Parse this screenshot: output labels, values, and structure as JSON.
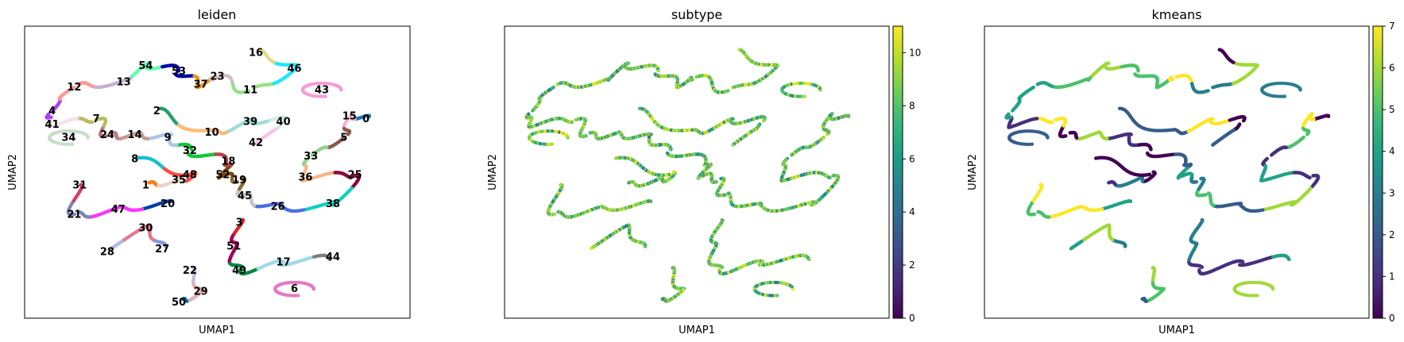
{
  "chart_data": [
    {
      "type": "scatter",
      "title": "leiden",
      "xlabel": "UMAP1",
      "ylabel": "UMAP2",
      "color_by": "categorical",
      "legend": "on data",
      "grid": false,
      "cluster_labels": [
        {
          "label": "0",
          "x": 6.2,
          "y": 7.5
        },
        {
          "label": "1",
          "x": 2.2,
          "y": 5.0
        },
        {
          "label": "2",
          "x": 2.4,
          "y": 7.8
        },
        {
          "label": "3",
          "x": 3.9,
          "y": 3.6
        },
        {
          "label": "4",
          "x": 0.5,
          "y": 7.8
        },
        {
          "label": "5",
          "x": 5.8,
          "y": 6.8
        },
        {
          "label": "6",
          "x": 4.9,
          "y": 1.1
        },
        {
          "label": "7",
          "x": 1.3,
          "y": 7.5
        },
        {
          "label": "8",
          "x": 2.0,
          "y": 6.0
        },
        {
          "label": "9",
          "x": 2.6,
          "y": 6.8
        },
        {
          "label": "10",
          "x": 3.4,
          "y": 7.0
        },
        {
          "label": "11",
          "x": 4.1,
          "y": 8.6
        },
        {
          "label": "12",
          "x": 0.9,
          "y": 8.7
        },
        {
          "label": "13",
          "x": 1.8,
          "y": 8.9
        },
        {
          "label": "14",
          "x": 2.0,
          "y": 6.9
        },
        {
          "label": "15",
          "x": 5.9,
          "y": 7.6
        },
        {
          "label": "16",
          "x": 4.2,
          "y": 10.0
        },
        {
          "label": "17",
          "x": 4.7,
          "y": 2.1
        },
        {
          "label": "18",
          "x": 3.7,
          "y": 5.9
        },
        {
          "label": "19",
          "x": 3.9,
          "y": 5.2
        },
        {
          "label": "20",
          "x": 2.6,
          "y": 4.3
        },
        {
          "label": "21",
          "x": 0.9,
          "y": 3.9
        },
        {
          "label": "22",
          "x": 3.0,
          "y": 1.8
        },
        {
          "label": "23",
          "x": 3.5,
          "y": 9.1
        },
        {
          "label": "24",
          "x": 1.5,
          "y": 6.9
        },
        {
          "label": "25",
          "x": 6.0,
          "y": 5.4
        },
        {
          "label": "26",
          "x": 4.6,
          "y": 4.2
        },
        {
          "label": "27",
          "x": 2.5,
          "y": 2.6
        },
        {
          "label": "28",
          "x": 1.5,
          "y": 2.5
        },
        {
          "label": "29",
          "x": 3.2,
          "y": 1.0
        },
        {
          "label": "30",
          "x": 2.2,
          "y": 3.4
        },
        {
          "label": "31",
          "x": 1.0,
          "y": 5.0
        },
        {
          "label": "32",
          "x": 3.0,
          "y": 6.3
        },
        {
          "label": "33",
          "x": 5.2,
          "y": 6.1
        },
        {
          "label": "34",
          "x": 0.8,
          "y": 6.8
        },
        {
          "label": "35",
          "x": 2.8,
          "y": 5.2
        },
        {
          "label": "36",
          "x": 5.1,
          "y": 5.3
        },
        {
          "label": "37",
          "x": 3.2,
          "y": 8.8
        },
        {
          "label": "38",
          "x": 5.6,
          "y": 4.3
        },
        {
          "label": "39",
          "x": 4.1,
          "y": 7.4
        },
        {
          "label": "40",
          "x": 4.7,
          "y": 7.4
        },
        {
          "label": "41",
          "x": 0.5,
          "y": 7.3
        },
        {
          "label": "42",
          "x": 4.2,
          "y": 6.6
        },
        {
          "label": "43",
          "x": 5.4,
          "y": 8.6
        },
        {
          "label": "44",
          "x": 5.6,
          "y": 2.3
        },
        {
          "label": "45",
          "x": 4.0,
          "y": 4.6
        },
        {
          "label": "46",
          "x": 4.9,
          "y": 9.4
        },
        {
          "label": "47",
          "x": 1.7,
          "y": 4.1
        },
        {
          "label": "48",
          "x": 3.0,
          "y": 5.4
        },
        {
          "label": "49",
          "x": 3.9,
          "y": 1.8
        },
        {
          "label": "50",
          "x": 2.8,
          "y": 0.6
        },
        {
          "label": "51",
          "x": 3.8,
          "y": 2.7
        },
        {
          "label": "52",
          "x": 3.6,
          "y": 5.4
        },
        {
          "label": "53",
          "x": 2.8,
          "y": 9.3
        },
        {
          "label": "54",
          "x": 2.2,
          "y": 9.5
        }
      ]
    },
    {
      "type": "scatter",
      "title": "subtype",
      "xlabel": "UMAP1",
      "ylabel": "UMAP2",
      "color_by": "continuous",
      "colormap": "viridis",
      "colorbar": {
        "min": 0,
        "max": 11,
        "ticks": [
          0,
          2,
          4,
          6,
          8,
          10
        ]
      },
      "grid": false
    },
    {
      "type": "scatter",
      "title": "kmeans",
      "xlabel": "UMAP1",
      "ylabel": "UMAP2",
      "color_by": "continuous",
      "colormap": "viridis",
      "colorbar": {
        "min": 0,
        "max": 7,
        "ticks": [
          0,
          1,
          2,
          3,
          4,
          5,
          6,
          7
        ]
      },
      "grid": false
    }
  ],
  "palette": [
    "#1f77b4",
    "#ff7f0e",
    "#279e68",
    "#d62728",
    "#aa40fc",
    "#8c564b",
    "#e377c2",
    "#b5bd61",
    "#17becf",
    "#aec7e8",
    "#ffbb78",
    "#98df8a",
    "#ff9896",
    "#c5b0d5",
    "#c49c94",
    "#f7b6d2",
    "#dbdb8d",
    "#9edae5",
    "#ad494a",
    "#8c6d31",
    "#023fa5",
    "#7d87b9",
    "#bec1d4",
    "#d6bcc0",
    "#bb7784",
    "#8e063b",
    "#4a6fe3",
    "#8595e1",
    "#b5bbe3",
    "#e6afb9",
    "#e07b91",
    "#d33f6a",
    "#11c638",
    "#8dd593",
    "#c6dec7",
    "#ead3c6",
    "#f0b98d",
    "#ef9708",
    "#0fcfc0",
    "#9cded6",
    "#d5eae7",
    "#f3e1eb",
    "#f6c4e1",
    "#f79cd4",
    "#7f7f7f",
    "#c7c7c7",
    "#1CE6FF",
    "#FF34FF",
    "#FF4A46",
    "#008941",
    "#006FA6",
    "#A30059",
    "#7A4900",
    "#0000A6",
    "#63FFAC"
  ],
  "viridis": [
    "#440154",
    "#482878",
    "#3e4989",
    "#31688e",
    "#26828e",
    "#1f9e89",
    "#35b779",
    "#6ece58",
    "#b5de2b",
    "#fde725"
  ]
}
